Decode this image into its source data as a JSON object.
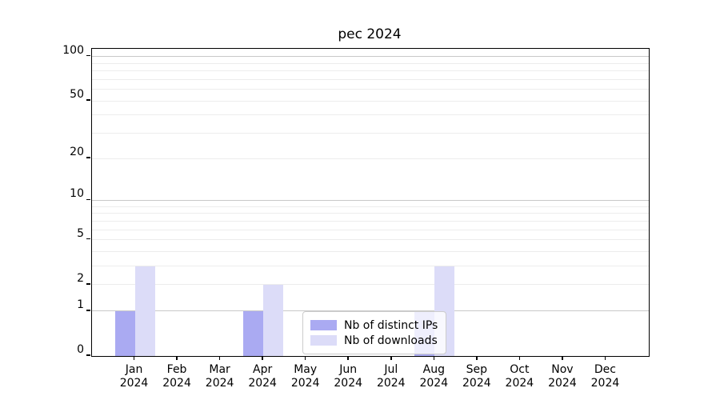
{
  "title": "pec 2024",
  "chart_data": {
    "type": "bar",
    "title": "pec 2024",
    "categories": [
      "Jan",
      "Feb",
      "Mar",
      "Apr",
      "May",
      "Jun",
      "Jul",
      "Aug",
      "Sep",
      "Oct",
      "Nov",
      "Dec"
    ],
    "category_year": "2024",
    "series": [
      {
        "name": "Nb of distinct IPs",
        "color": "#aaaaf2",
        "values": [
          1,
          0,
          0,
          1,
          0,
          0,
          0,
          1,
          0,
          0,
          0,
          0
        ]
      },
      {
        "name": "Nb of downloads",
        "color": "#dcdcf8",
        "values": [
          3,
          0,
          0,
          2,
          0,
          0,
          0,
          3,
          0,
          0,
          0,
          0
        ]
      }
    ],
    "xlabel": "",
    "ylabel": "",
    "yscale": "log1p",
    "ylim": [
      0,
      112.7
    ],
    "yticks": [
      0,
      1,
      2,
      5,
      10,
      20,
      50,
      100
    ],
    "grid_major_values": [
      1,
      10,
      100
    ],
    "grid_minor_values": [
      2,
      3,
      4,
      5,
      6,
      7,
      8,
      9,
      20,
      30,
      40,
      50,
      60,
      70,
      80,
      90
    ],
    "grid": "on",
    "legend_position": "inside lower center-right",
    "legend_entries": [
      "Nb of distinct IPs",
      "Nb of downloads"
    ]
  },
  "colors": {
    "bar_distinct_ips": "#aaaaf2",
    "bar_downloads": "#dcdcf8",
    "grid_major": "#c9c9c9",
    "grid_minor": "#ececec",
    "spine": "#000000",
    "text": "#000000",
    "legend_border": "#cccccc"
  }
}
